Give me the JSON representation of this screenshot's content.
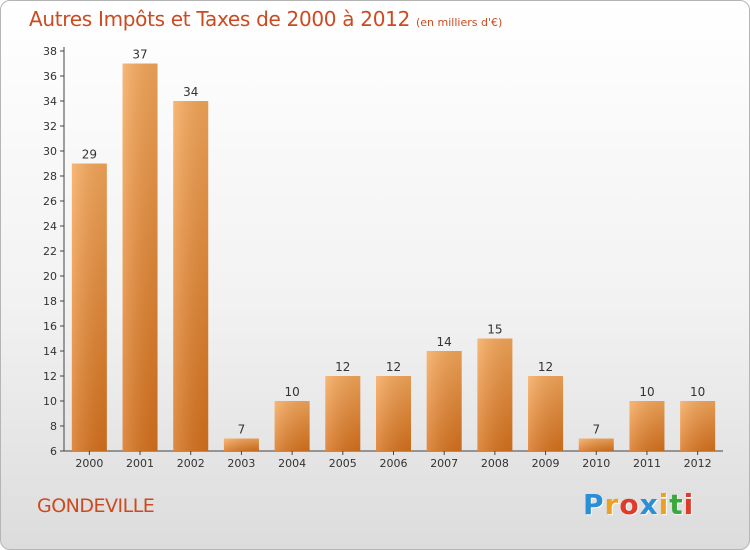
{
  "title": "Autres Impôts et Taxes de 2000 à 2012",
  "unit_label": "(en milliers d'€)",
  "location": "GONDEVILLE",
  "brand": {
    "letters": [
      "P",
      "r",
      "o",
      "x",
      "i",
      "t",
      "i"
    ],
    "colors": [
      "#2a8fd6",
      "#f0a020",
      "#e03a2a",
      "#2a8fd6",
      "#f0a020",
      "#3aa83a",
      "#e03a2a"
    ]
  },
  "chart_data": {
    "type": "bar",
    "title": "Autres Impôts et Taxes de 2000 à 2012",
    "xlabel": "",
    "ylabel": "",
    "categories": [
      "2000",
      "2001",
      "2002",
      "2003",
      "2004",
      "2005",
      "2006",
      "2007",
      "2008",
      "2009",
      "2010",
      "2011",
      "2012"
    ],
    "values": [
      29,
      37,
      34,
      7,
      10,
      12,
      12,
      14,
      15,
      12,
      7,
      10,
      10
    ],
    "ylim": [
      6,
      38
    ],
    "yticks": [
      6,
      8,
      10,
      12,
      14,
      16,
      18,
      20,
      22,
      24,
      26,
      28,
      30,
      32,
      34,
      36,
      38
    ],
    "grid": false,
    "legend": "none",
    "bar_color": "#f29a45"
  }
}
